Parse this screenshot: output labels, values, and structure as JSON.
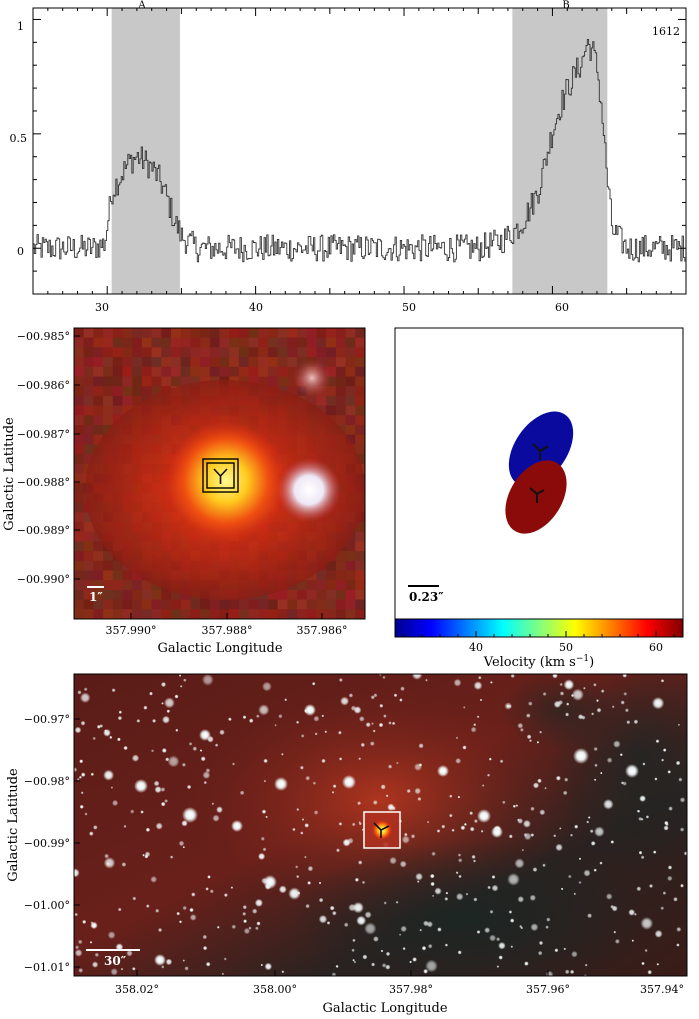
{
  "spectrum": {
    "label": "1612",
    "region_a": {
      "label": "A",
      "start": 30.3,
      "end": 34.9
    },
    "region_b": {
      "label": "B",
      "start": 57.3,
      "end": 63.7
    },
    "xlim": [
      25,
      69
    ],
    "ylim": [
      -0.2,
      1.05
    ],
    "xticks": [
      "30",
      "40",
      "50",
      "60"
    ],
    "yticks": [
      "1",
      "0.5",
      "0"
    ]
  },
  "chart_data": {
    "type": "line",
    "x": [
      25,
      26,
      27,
      28,
      29,
      29.8,
      30.3,
      31,
      31.5,
      32,
      32.5,
      33,
      33.5,
      34,
      34.5,
      35,
      36,
      40,
      45,
      50,
      55,
      56.5,
      57.5,
      58,
      58.5,
      59,
      59.5,
      60,
      60.5,
      61,
      61.5,
      62,
      62.3,
      62.7,
      63,
      63.3,
      63.7,
      64,
      65,
      67,
      69
    ],
    "values": [
      0.0,
      0.0,
      0.0,
      0.0,
      0.0,
      0.02,
      0.25,
      0.33,
      0.38,
      0.4,
      0.38,
      0.35,
      0.3,
      0.22,
      0.12,
      0.05,
      0.0,
      0.0,
      0.0,
      0.0,
      0.0,
      0.03,
      0.08,
      0.12,
      0.18,
      0.25,
      0.38,
      0.52,
      0.62,
      0.7,
      0.76,
      0.82,
      0.9,
      0.86,
      0.78,
      0.6,
      0.28,
      0.08,
      0.0,
      0.0,
      0.0
    ],
    "xlim": [
      25,
      69
    ],
    "ylim": [
      -0.2,
      1.05
    ]
  },
  "zoom": {
    "ylabel": "Galactic Latitude",
    "xlabel": "Galactic Longitude",
    "yticks": [
      "−00.985°",
      "−00.986°",
      "−00.987°",
      "−00.988°",
      "−00.989°",
      "−00.990°"
    ],
    "xticks": [
      "357.990°",
      "357.988°",
      "357.986°"
    ],
    "scalebar": "1″"
  },
  "velocity": {
    "scalebar": "0.23″",
    "colorbar_label": "Velocity (km s",
    "colorbar_sup": "−1",
    "colorbar_close": ")",
    "ticks": [
      "40",
      "50",
      "60"
    ],
    "vmin": 31,
    "vmax": 63,
    "blue_color": "#0a0a9e",
    "red_color": "#8b0a0a"
  },
  "field": {
    "ylabel": "Galactic Latitude",
    "xlabel": "Galactic Longitude",
    "yticks": [
      "−00.97°",
      "−00.98°",
      "−00.99°",
      "−01.00°",
      "−01.01°"
    ],
    "xticks": [
      "358.02°",
      "358.00°",
      "357.98°",
      "357.96°",
      "357.94°"
    ],
    "scalebar": "30″"
  }
}
